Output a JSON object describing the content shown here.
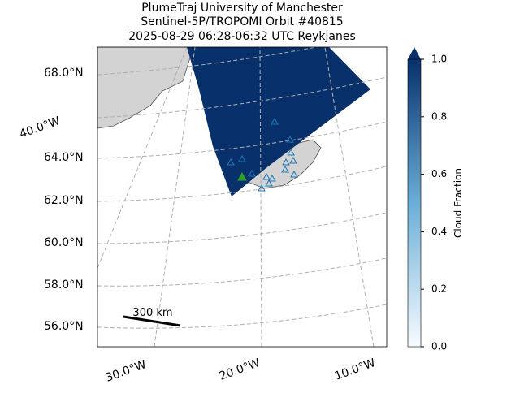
{
  "title": [
    "PlumeTraj    University of Manchester",
    "Sentinel-5P/TROPOMI Orbit #40815",
    "2025-08-29   06:28-06:32 UTC   Reykjanes"
  ],
  "map": {
    "lat_labels": [
      "68.0°N",
      "64.0°N",
      "62.0°N",
      "60.0°N",
      "58.0°N",
      "56.0°N"
    ],
    "lon_labels": [
      "40.0°W",
      "30.0°W",
      "20.0°W",
      "10.0°W"
    ],
    "scale_bar": "300 km"
  },
  "colorbar": {
    "label": "Cloud Fraction",
    "lim": [
      0,
      1
    ],
    "ticks": [
      {
        "value": 0,
        "label": "0.0"
      },
      {
        "value": 0.2,
        "label": "0.2"
      },
      {
        "value": 0.4,
        "label": "0.4"
      },
      {
        "value": 0.6,
        "label": "0.6"
      },
      {
        "value": 0.8,
        "label": "0.8"
      },
      {
        "value": 1,
        "label": "1.0"
      }
    ],
    "low_color": "#f7fbff",
    "high_color": "#08306b"
  }
}
